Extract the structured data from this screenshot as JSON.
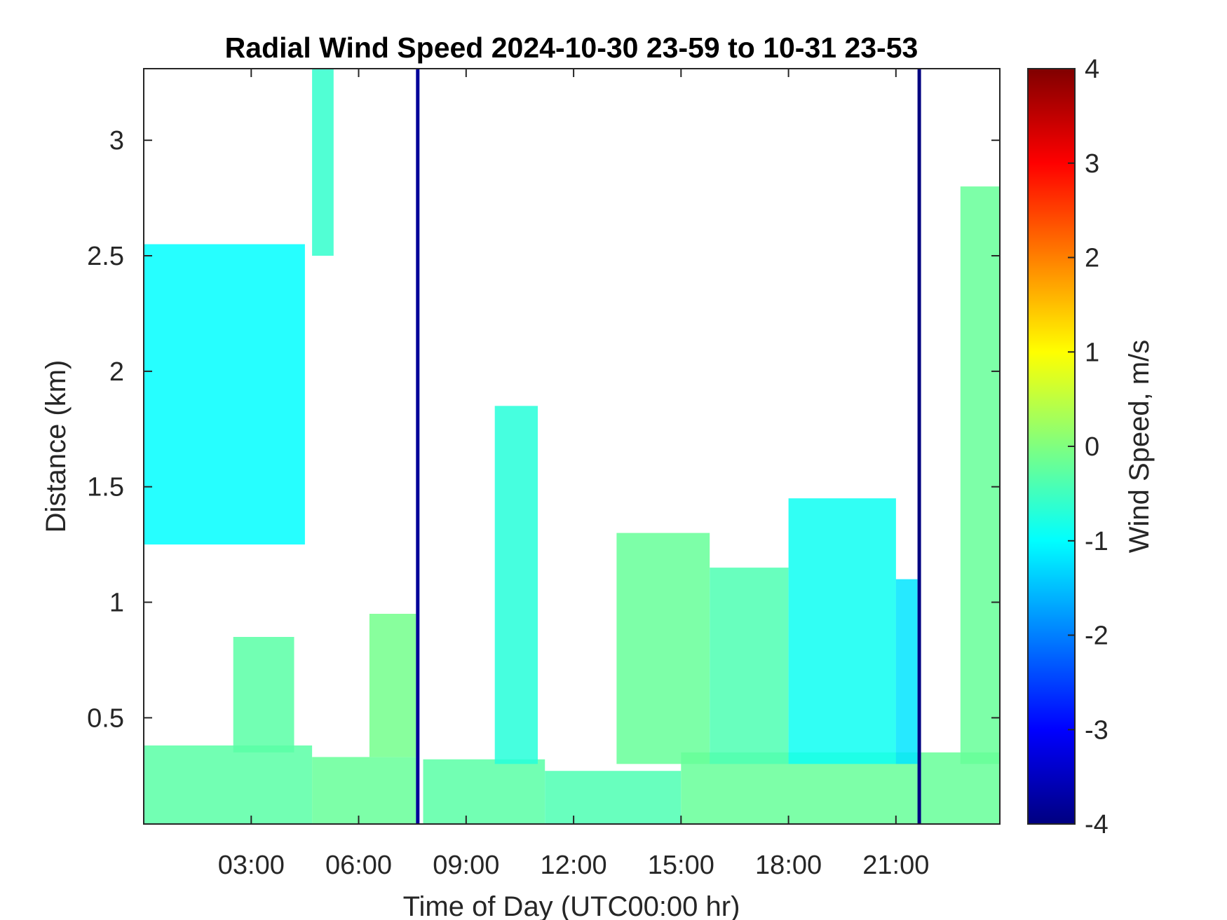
{
  "chart_data": {
    "type": "heatmap",
    "title": "Radial Wind Speed 2024-10-30 23-59 to 10-31 23-53",
    "xlabel": "Time of Day (UTC00:00 hr)",
    "ylabel": "Distance (km)",
    "colorbar_label": "Wind Speed, m/s",
    "x_unit": "hours",
    "xlim": [
      0.0,
      23.9
    ],
    "ylim": [
      0.04,
      3.31
    ],
    "clim": [
      -4,
      4
    ],
    "colormap": "jet",
    "x_ticks": [
      3,
      6,
      9,
      12,
      15,
      18,
      21
    ],
    "x_tick_labels": [
      "03:00",
      "06:00",
      "09:00",
      "12:00",
      "15:00",
      "18:00",
      "21:00"
    ],
    "y_ticks": [
      0.5,
      1,
      1.5,
      2,
      2.5,
      3
    ],
    "y_tick_labels": [
      "0.5",
      "1",
      "1.5",
      "2",
      "2.5",
      "3"
    ],
    "cbar_ticks": [
      4,
      3,
      2,
      1,
      0,
      -1,
      -2,
      -3,
      -4
    ],
    "cbar_tick_labels": [
      "4",
      "3",
      "2",
      "1",
      "0",
      "-1",
      "-2",
      "-3",
      "-4"
    ],
    "regions": [
      {
        "x": [
          0.0,
          4.7
        ],
        "y": [
          0.04,
          0.38
        ],
        "speed": -0.3
      },
      {
        "x": [
          4.7,
          7.6
        ],
        "y": [
          0.04,
          0.33
        ],
        "speed": -0.2
      },
      {
        "x": [
          7.8,
          11.2
        ],
        "y": [
          0.04,
          0.32
        ],
        "speed": -0.3
      },
      {
        "x": [
          11.2,
          15.0
        ],
        "y": [
          0.04,
          0.27
        ],
        "speed": -0.4
      },
      {
        "x": [
          15.0,
          23.9
        ],
        "y": [
          0.04,
          0.35
        ],
        "speed": -0.2
      },
      {
        "x": [
          0.0,
          4.5
        ],
        "y": [
          1.25,
          2.55
        ],
        "speed": -1.0
      },
      {
        "x": [
          4.7,
          5.3
        ],
        "y": [
          2.5,
          3.31
        ],
        "speed": -0.6
      },
      {
        "x": [
          2.5,
          4.2
        ],
        "y": [
          0.35,
          0.85
        ],
        "speed": -0.3
      },
      {
        "x": [
          6.3,
          7.6
        ],
        "y": [
          0.33,
          0.95
        ],
        "speed": -0.1
      },
      {
        "x": [
          9.8,
          11.0
        ],
        "y": [
          0.3,
          1.85
        ],
        "speed": -0.7
      },
      {
        "x": [
          13.2,
          15.8
        ],
        "y": [
          0.3,
          1.3
        ],
        "speed": -0.2
      },
      {
        "x": [
          15.8,
          18.0
        ],
        "y": [
          0.3,
          1.15
        ],
        "speed": -0.4
      },
      {
        "x": [
          18.0,
          21.0
        ],
        "y": [
          0.3,
          1.45
        ],
        "speed": -0.9
      },
      {
        "x": [
          21.0,
          21.6
        ],
        "y": [
          0.3,
          1.1
        ],
        "speed": -1.2
      },
      {
        "x": [
          22.8,
          23.9
        ],
        "y": [
          0.3,
          2.8
        ],
        "speed": -0.2
      }
    ],
    "bands": [
      {
        "x": 7.65,
        "speed": -3.8
      },
      {
        "x": 21.65,
        "speed": -4.0
      }
    ]
  }
}
